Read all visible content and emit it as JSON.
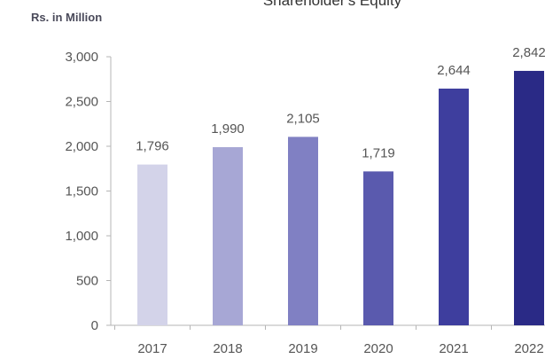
{
  "chart_data": {
    "type": "bar",
    "title": "Shareholder's Equity",
    "ylabel": "Rs. in Million",
    "xlabel": "",
    "categories": [
      "2017",
      "2018",
      "2019",
      "2020",
      "2021",
      "2022"
    ],
    "values": [
      1796,
      1990,
      2105,
      1719,
      2644,
      2842
    ],
    "value_labels": [
      "1,796",
      "1,990",
      "2,105",
      "1,719",
      "2,644",
      "2,842"
    ],
    "ylim": [
      0,
      3000
    ],
    "yticks": [
      0,
      500,
      1000,
      1500,
      2000,
      2500,
      3000
    ],
    "ytick_labels": [
      "0",
      "500",
      "1,000",
      "1,500",
      "2,000",
      "2,500",
      "3,000"
    ],
    "grid": false,
    "legend": "none",
    "colors": [
      "#d3d3e9",
      "#a7a7d5",
      "#8080c3",
      "#5a5aae",
      "#3e3e9e",
      "#2a2a86"
    ]
  }
}
